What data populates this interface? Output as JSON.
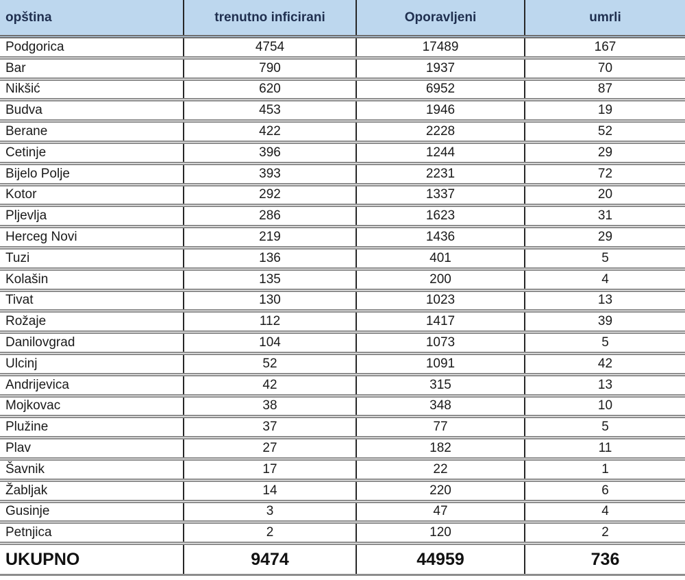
{
  "colors": {
    "header_bg": "#bdd7ee",
    "header_text": "#1f2f4f",
    "body_text": "#1a1a1a",
    "separator_gray": "#8c8c8c",
    "column_line_black": "#262626",
    "row_bg": "#ffffff"
  },
  "chart_data": {
    "type": "table",
    "columns": [
      "opština",
      "trenutno inficirani",
      "Oporavljeni",
      "umrli"
    ],
    "rows": [
      [
        "Podgorica",
        4754,
        17489,
        167
      ],
      [
        "Bar",
        790,
        1937,
        70
      ],
      [
        "Nikšić",
        620,
        6952,
        87
      ],
      [
        "Budva",
        453,
        1946,
        19
      ],
      [
        "Berane",
        422,
        2228,
        52
      ],
      [
        "Cetinje",
        396,
        1244,
        29
      ],
      [
        "Bijelo Polje",
        393,
        2231,
        72
      ],
      [
        "Kotor",
        292,
        1337,
        20
      ],
      [
        "Pljevlja",
        286,
        1623,
        31
      ],
      [
        "Herceg Novi",
        219,
        1436,
        29
      ],
      [
        "Tuzi",
        136,
        401,
        5
      ],
      [
        "Kolašin",
        135,
        200,
        4
      ],
      [
        "Tivat",
        130,
        1023,
        13
      ],
      [
        "Rožaje",
        112,
        1417,
        39
      ],
      [
        "Danilovgrad",
        104,
        1073,
        5
      ],
      [
        "Ulcinj",
        52,
        1091,
        42
      ],
      [
        "Andrijevica",
        42,
        315,
        13
      ],
      [
        "Mojkovac",
        38,
        348,
        10
      ],
      [
        "Plužine",
        37,
        77,
        5
      ],
      [
        "Plav",
        27,
        182,
        11
      ],
      [
        "Šavnik",
        17,
        22,
        1
      ],
      [
        "Žabljak",
        14,
        220,
        6
      ],
      [
        "Gusinje",
        3,
        47,
        4
      ],
      [
        "Petnjica",
        2,
        120,
        2
      ]
    ],
    "total_row": {
      "label": "UKUPNO",
      "values": [
        9474,
        44959,
        736
      ]
    }
  }
}
